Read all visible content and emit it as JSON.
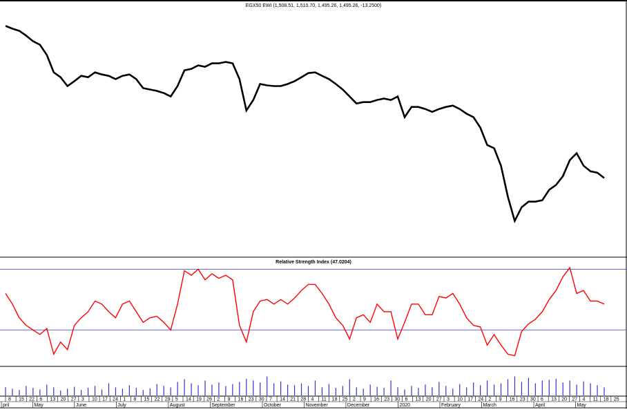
{
  "chart_data": [
    {
      "type": "line",
      "title": "EGX50 EWI (1,508.51, 1,510.70, 1,495.26, 1,495.26, -13.2500)",
      "color": "#000000",
      "values": [
        2150,
        2138,
        2129,
        2108,
        2084,
        2069,
        2025,
        1950,
        1929,
        1891,
        1912,
        1935,
        1929,
        1950,
        1941,
        1935,
        1921,
        1935,
        1941,
        1921,
        1882,
        1876,
        1870,
        1861,
        1846,
        1891,
        1959,
        1965,
        1980,
        1974,
        1989,
        1989,
        1995,
        1989,
        1921,
        1786,
        1831,
        1900,
        1894,
        1891,
        1891,
        1900,
        1912,
        1929,
        1947,
        1950,
        1935,
        1921,
        1900,
        1876,
        1846,
        1816,
        1822,
        1822,
        1831,
        1837,
        1831,
        1846,
        1757,
        1801,
        1801,
        1792,
        1780,
        1792,
        1801,
        1807,
        1792,
        1772,
        1757,
        1712,
        1637,
        1623,
        1548,
        1414,
        1310,
        1369,
        1393,
        1393,
        1399,
        1444,
        1465,
        1503,
        1572,
        1602,
        1548,
        1524,
        1518,
        1495
      ],
      "ylim": [
        1160,
        2220
      ]
    },
    {
      "type": "line",
      "title": "Relative Strength Index (47.0204)",
      "color": "#ff0000",
      "level_color": "#3333cc",
      "values": [
        54,
        47,
        38,
        33,
        30,
        27,
        31,
        14,
        22,
        17,
        33,
        38,
        42,
        49,
        47,
        42,
        38,
        47,
        49,
        42,
        35,
        38,
        39,
        35,
        30,
        47,
        69,
        66,
        70,
        63,
        67,
        64,
        66,
        63,
        33,
        22,
        42,
        49,
        50,
        47,
        50,
        47,
        51,
        56,
        60,
        60,
        54,
        47,
        38,
        33,
        24,
        38,
        40,
        35,
        47,
        42,
        42,
        24,
        35,
        47,
        47,
        40,
        40,
        52,
        51,
        54,
        47,
        38,
        33,
        32,
        20,
        27,
        20,
        14,
        13,
        29,
        34,
        37,
        42,
        50,
        56,
        65,
        71,
        54,
        56,
        49,
        49,
        47
      ],
      "levels": [
        70,
        30
      ],
      "ylim": [
        6,
        72
      ]
    },
    {
      "type": "bar",
      "color": "#3333cc",
      "values": [
        30,
        25,
        20,
        35,
        28,
        22,
        40,
        30,
        18,
        25,
        32,
        20,
        28,
        35,
        22,
        45,
        30,
        25,
        38,
        28,
        20,
        26,
        42,
        35,
        30,
        50,
        60,
        45,
        38,
        55,
        40,
        48,
        35,
        42,
        50,
        62,
        55,
        48,
        70,
        45,
        52,
        40,
        38,
        45,
        35,
        55,
        30,
        42,
        28,
        35,
        60,
        30,
        25,
        40,
        32,
        28,
        55,
        30,
        22,
        35,
        28,
        40,
        30,
        50,
        35,
        25,
        42,
        30,
        48,
        38,
        55,
        40,
        45,
        60,
        70,
        50,
        65,
        45,
        55,
        58,
        62,
        48,
        55,
        40,
        52,
        45,
        38,
        30
      ],
      "ylim": [
        0,
        100
      ]
    }
  ],
  "date_axis": [
    {
      "month": "pril",
      "days": [
        "8",
        "15",
        "22"
      ]
    },
    {
      "month": "May",
      "days": [
        "6",
        "13",
        "20",
        "27"
      ]
    },
    {
      "month": "June",
      "days": [
        "3",
        "10",
        "17",
        "24"
      ]
    },
    {
      "month": "July",
      "days": [
        "1",
        "8",
        "15",
        "22",
        "29"
      ]
    },
    {
      "month": "August",
      "days": [
        "5",
        "14",
        "19",
        "26"
      ]
    },
    {
      "month": "September",
      "days": [
        "2",
        "9",
        "16",
        "23",
        "30"
      ]
    },
    {
      "month": "October",
      "days": [
        "7",
        "14",
        "21",
        "28"
      ]
    },
    {
      "month": "November",
      "days": [
        "4",
        "11",
        "18",
        "25"
      ]
    },
    {
      "month": "December",
      "days": [
        "2",
        "9",
        "16",
        "23",
        "30"
      ]
    },
    {
      "month": "2020",
      "days": [
        "6",
        "13",
        "20",
        "27"
      ]
    },
    {
      "month": "February",
      "days": [
        "3",
        "10",
        "17",
        "24"
      ]
    },
    {
      "month": "March",
      "days": [
        "2",
        "9",
        "16",
        "23",
        "30"
      ]
    },
    {
      "month": "April",
      "days": [
        "6",
        "13",
        "20",
        "27"
      ]
    },
    {
      "month": "May",
      "days": [
        "4",
        "11",
        "18",
        "25"
      ]
    }
  ]
}
